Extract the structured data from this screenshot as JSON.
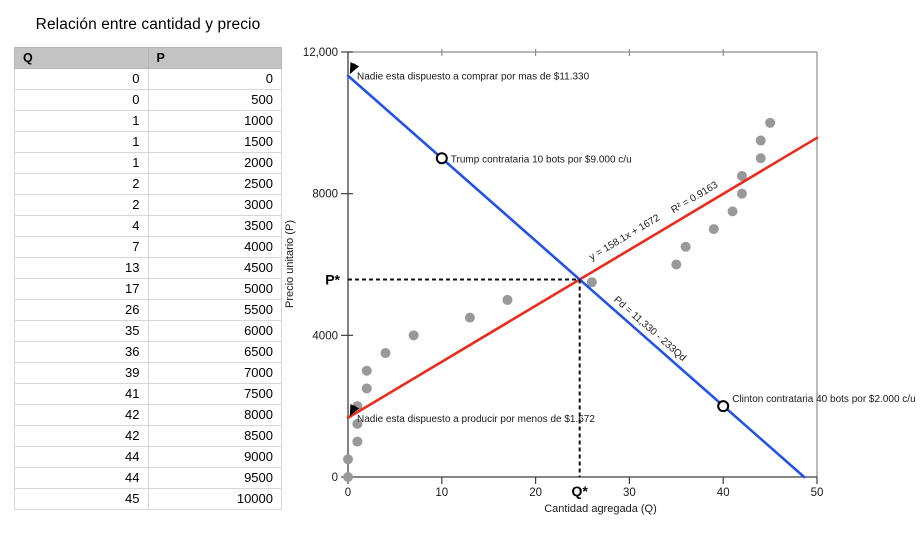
{
  "table": {
    "title": "Relación entre cantidad y precio",
    "columns": [
      "Q",
      "P"
    ],
    "rows": [
      [
        0,
        0
      ],
      [
        0,
        500
      ],
      [
        1,
        1000
      ],
      [
        1,
        1500
      ],
      [
        1,
        2000
      ],
      [
        2,
        2500
      ],
      [
        2,
        3000
      ],
      [
        4,
        3500
      ],
      [
        7,
        4000
      ],
      [
        13,
        4500
      ],
      [
        17,
        5000
      ],
      [
        26,
        5500
      ],
      [
        35,
        6000
      ],
      [
        36,
        6500
      ],
      [
        39,
        7000
      ],
      [
        41,
        7500
      ],
      [
        42,
        8000
      ],
      [
        42,
        8500
      ],
      [
        44,
        9000
      ],
      [
        44,
        9500
      ],
      [
        45,
        10000
      ]
    ]
  },
  "chart_data": {
    "type": "scatter",
    "xlabel": "Cantidad agregada (Q)",
    "ylabel": "Precio unitario (P)",
    "xlim": [
      0,
      50
    ],
    "ylim": [
      0,
      12000
    ],
    "x_ticks": [
      0,
      10,
      20,
      30,
      40,
      50
    ],
    "y_ticks": [
      0,
      4000,
      8000,
      12000
    ],
    "y_tick_labels": [
      "0",
      "4000",
      "8000",
      "12,000"
    ],
    "colors": {
      "axis": "#3f3f3f",
      "frame": "#8c8c8c",
      "dashed": "#111111"
    },
    "scatter": {
      "name": "Q-P observations",
      "color": "#999999",
      "points": [
        [
          0,
          0
        ],
        [
          0,
          500
        ],
        [
          1,
          1000
        ],
        [
          1,
          1500
        ],
        [
          1,
          2000
        ],
        [
          2,
          2500
        ],
        [
          2,
          3000
        ],
        [
          4,
          3500
        ],
        [
          7,
          4000
        ],
        [
          13,
          4500
        ],
        [
          17,
          5000
        ],
        [
          26,
          5500
        ],
        [
          35,
          6000
        ],
        [
          36,
          6500
        ],
        [
          39,
          7000
        ],
        [
          41,
          7500
        ],
        [
          42,
          8000
        ],
        [
          42,
          8500
        ],
        [
          44,
          9000
        ],
        [
          44,
          9500
        ],
        [
          45,
          10000
        ]
      ]
    },
    "lines": [
      {
        "name": "supply-trend",
        "color": "#ea2c1d",
        "x1": 0,
        "y1": 1672,
        "x2": 50,
        "y2": 9577,
        "equation_label": "y = 158.1x + 1672",
        "r2_label": "R² = 0.9163"
      },
      {
        "name": "demand",
        "color": "#2353e6",
        "x1": 0,
        "y1": 11330,
        "x2": 48.63,
        "y2": 0,
        "equation_label": "Pd = 11,330 - 233Qd"
      }
    ],
    "equilibrium": {
      "q": 24.7,
      "p": 5577,
      "p_label": "P*",
      "q_label": "Q*"
    },
    "annotations": [
      {
        "name": "demand-intercept-note",
        "marker": "arrow",
        "text": "Nadie esta dispuesto a comprar por mas de $11.330",
        "x": 0,
        "y": 11330
      },
      {
        "name": "trump-note",
        "marker": "open-circle",
        "text": "Trump contrataria 10 bots por $9.000 c/u",
        "x": 10,
        "y": 9000
      },
      {
        "name": "clinton-note",
        "marker": "open-circle",
        "text": "Clinton contrataria 40 bots por $2.000 c/u",
        "x": 40,
        "y": 2000
      },
      {
        "name": "supply-intercept-note",
        "marker": "arrow",
        "text": "Nadie esta dispuesto a producir por menos de $1.672",
        "x": 0,
        "y": 1672
      }
    ]
  }
}
